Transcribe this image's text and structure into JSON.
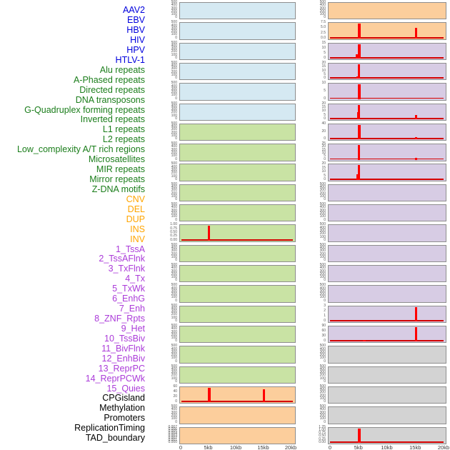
{
  "chart_data": {
    "type": "area",
    "title": "",
    "xlabel": "",
    "ylabel": "",
    "x_axis": {
      "labels": [
        "0",
        "5kb",
        "10kb",
        "15kb",
        "20kb"
      ],
      "range_kb": [
        0,
        20
      ]
    },
    "legend": "none",
    "grid": false,
    "spike_color": "#ff0000",
    "baseline_color": "#d40000",
    "panel_border_color": "#8e8e8e",
    "group_colors": {
      "virus": {
        "label": "#0000dd",
        "fill": "#d5e9f2"
      },
      "repeat": {
        "label": "#1a7d1a",
        "fill": "#c9e3a4"
      },
      "sv": {
        "label": "#ffa500",
        "fill": "#fcce9c"
      },
      "state": {
        "label": "#ab3bd9",
        "fill": "#d7cce4"
      },
      "other": {
        "label": "#000000",
        "fill": "#d3d3d3"
      }
    },
    "columns": {
      "left": {
        "panels": [
          {
            "name": "AAV2",
            "group": "virus",
            "yticks": [
              "0",
              "100",
              "200",
              "300",
              "400",
              "500"
            ],
            "spikes": [],
            "baseline": false
          },
          {
            "name": "EBV",
            "group": "virus",
            "yticks": [
              "0",
              "100",
              "200",
              "300",
              "400",
              "500"
            ],
            "spikes": [],
            "baseline": false
          },
          {
            "name": "HBV",
            "group": "virus",
            "yticks": [
              "0",
              "100",
              "200",
              "300",
              "400",
              "500"
            ],
            "spikes": [],
            "baseline": false
          },
          {
            "name": "HIV",
            "group": "virus",
            "yticks": [
              "0",
              "100",
              "200",
              "300",
              "400",
              "500"
            ],
            "spikes": [],
            "baseline": false
          },
          {
            "name": "HPV",
            "group": "virus",
            "yticks": [
              "0",
              "100",
              "200",
              "300",
              "400",
              "500"
            ],
            "spikes": [],
            "baseline": false
          },
          {
            "name": "HTLV-1",
            "group": "virus",
            "yticks": [
              "0",
              "100",
              "200",
              "300",
              "400",
              "500"
            ],
            "spikes": [],
            "baseline": false
          },
          {
            "name": "Alu repeats",
            "group": "repeat",
            "yticks": [
              "0",
              "100",
              "200",
              "300",
              "400",
              "500"
            ],
            "spikes": [],
            "baseline": false
          },
          {
            "name": "A-Phased repeats",
            "group": "repeat",
            "yticks": [
              "0",
              "100",
              "200",
              "300",
              "400",
              "500"
            ],
            "spikes": [],
            "baseline": false
          },
          {
            "name": "Directed repeats",
            "group": "repeat",
            "yticks": [
              "0",
              "100",
              "200",
              "300",
              "400",
              "500"
            ],
            "spikes": [],
            "baseline": false
          },
          {
            "name": "DNA transposons",
            "group": "repeat",
            "yticks": [
              "0",
              "100",
              "200",
              "300",
              "400",
              "500"
            ],
            "spikes": [],
            "baseline": false
          },
          {
            "name": "G-Quadruplex forming repeats",
            "group": "repeat",
            "yticks": [
              "0",
              "100",
              "200",
              "300",
              "400",
              "500"
            ],
            "spikes": [],
            "baseline": false
          },
          {
            "name": "Inverted repeats",
            "group": "repeat",
            "yticks": [
              "0.00",
              "0.25",
              "0.50",
              "0.75",
              "1.00"
            ],
            "spikes": [
              {
                "kb": 5,
                "h": 1.0,
                "w": 2.5
              }
            ],
            "baseline": true
          },
          {
            "name": "L1 repeats",
            "group": "repeat",
            "yticks": [
              "0",
              "100",
              "200",
              "300",
              "400",
              "500"
            ],
            "spikes": [],
            "baseline": false
          },
          {
            "name": "L2 repeats",
            "group": "repeat",
            "yticks": [
              "0",
              "100",
              "200",
              "300",
              "400",
              "500"
            ],
            "spikes": [],
            "baseline": false
          },
          {
            "name": "Low_complexity A/T rich regions",
            "group": "repeat",
            "yticks": [
              "0",
              "100",
              "200",
              "300",
              "400",
              "500"
            ],
            "spikes": [],
            "baseline": false
          },
          {
            "name": "Microsatellites",
            "group": "repeat",
            "yticks": [
              "0",
              "100",
              "200",
              "300",
              "400",
              "500"
            ],
            "spikes": [],
            "baseline": false
          },
          {
            "name": "MIR repeats",
            "group": "repeat",
            "yticks": [
              "0",
              "100",
              "200",
              "300",
              "400",
              "500"
            ],
            "spikes": [],
            "baseline": false
          },
          {
            "name": "Mirror repeats",
            "group": "repeat",
            "yticks": [
              "0",
              "100",
              "200",
              "300",
              "400",
              "500"
            ],
            "spikes": [],
            "baseline": false
          },
          {
            "name": "Z-DNA motifs",
            "group": "repeat",
            "yticks": [
              "0",
              "100",
              "200",
              "300",
              "400",
              "500"
            ],
            "spikes": [],
            "baseline": false
          },
          {
            "name": "CNV",
            "group": "sv",
            "yticks": [
              "0",
              "20",
              "40",
              "60"
            ],
            "spikes": [
              {
                "kb": 5,
                "h": 1.0,
                "w": 4
              },
              {
                "kb": 15,
                "h": 0.92,
                "w": 3.5
              }
            ],
            "baseline": true
          },
          {
            "name": "DEL",
            "group": "sv",
            "yticks": [
              "0",
              "100",
              "200",
              "300",
              "400",
              "500"
            ],
            "spikes": [],
            "baseline": false
          },
          {
            "name": "DUP",
            "group": "sv",
            "yticks": [
              "0.000",
              "0.001",
              "0.002",
              "0.003",
              "0.004",
              "0.005",
              "0.006",
              "0.007"
            ],
            "spikes": [],
            "baseline": false
          }
        ]
      },
      "right": {
        "panels": [
          {
            "name": "INS",
            "group": "sv",
            "yticks": [
              "0",
              "100",
              "200",
              "300",
              "400",
              "500"
            ],
            "spikes": [],
            "baseline": false
          },
          {
            "name": "INV",
            "group": "sv",
            "yticks": [
              "0.0",
              "2.5",
              "5.0",
              "7.5"
            ],
            "spikes": [
              {
                "kb": 5,
                "h": 1.0,
                "w": 3.5
              },
              {
                "kb": 15,
                "h": 0.72,
                "w": 3
              }
            ],
            "baseline": true
          },
          {
            "name": "1_TssA",
            "group": "state",
            "yticks": [
              "0",
              "5",
              "10",
              "15"
            ],
            "spikes": [
              {
                "kb": 5,
                "h": 1.0,
                "w": 3.5
              },
              {
                "kb": 4.6,
                "h": 0.28,
                "w": 3
              }
            ],
            "baseline": true
          },
          {
            "name": "2_TssAFlnk",
            "group": "state",
            "yticks": [
              "0",
              "5",
              "10",
              "15",
              "20"
            ],
            "spikes": [
              {
                "kb": 5,
                "h": 1.0,
                "w": 3
              },
              {
                "kb": 4.7,
                "h": 0.17,
                "w": 3
              }
            ],
            "baseline": true
          },
          {
            "name": "3_TxFlnk",
            "group": "state",
            "yticks": [
              "0",
              "5",
              "10"
            ],
            "spikes": [
              {
                "kb": 5,
                "h": 1.0,
                "w": 3.5
              }
            ],
            "baseline": true
          },
          {
            "name": "4_Tx",
            "group": "state",
            "yticks": [
              "0",
              "5",
              "10",
              "15",
              "20"
            ],
            "spikes": [
              {
                "kb": 5,
                "h": 1.0,
                "w": 3
              },
              {
                "kb": 4.8,
                "h": 0.5,
                "w": 2
              },
              {
                "kb": 15,
                "h": 0.27,
                "w": 3
              }
            ],
            "baseline": true
          },
          {
            "name": "5_TxWk",
            "group": "state",
            "yticks": [
              "0",
              "20",
              "40"
            ],
            "spikes": [
              {
                "kb": 5,
                "h": 1.0,
                "w": 3.5
              },
              {
                "kb": 15,
                "h": 0.18,
                "w": 3
              }
            ],
            "baseline": true
          },
          {
            "name": "6_EnhG",
            "group": "state",
            "yticks": [
              "0",
              "5",
              "10",
              "15",
              "20",
              "25"
            ],
            "spikes": [
              {
                "kb": 5,
                "h": 1.0,
                "w": 3
              },
              {
                "kb": 15,
                "h": 0.13,
                "w": 2.5
              }
            ],
            "baseline": true
          },
          {
            "name": "7_Enh",
            "group": "state",
            "yticks": [
              "0",
              "5",
              "10",
              "15",
              "20"
            ],
            "spikes": [
              {
                "kb": 5,
                "h": 1.0,
                "w": 3
              },
              {
                "kb": 4.85,
                "h": 0.38,
                "w": 5
              }
            ],
            "baseline": true
          },
          {
            "name": "8_ZNF_Rpts",
            "group": "state",
            "yticks": [
              "0",
              "100",
              "200",
              "300",
              "400",
              "500"
            ],
            "spikes": [],
            "baseline": false
          },
          {
            "name": "9_Het",
            "group": "state",
            "yticks": [
              "0",
              "100",
              "200",
              "300",
              "400",
              "500"
            ],
            "spikes": [],
            "baseline": false
          },
          {
            "name": "10_TssBiv",
            "group": "state",
            "yticks": [
              "0",
              "100",
              "200",
              "300",
              "400",
              "500"
            ],
            "spikes": [],
            "baseline": false
          },
          {
            "name": "11_BivFlnk",
            "group": "state",
            "yticks": [
              "0",
              "100",
              "200",
              "300",
              "400",
              "500"
            ],
            "spikes": [],
            "baseline": false
          },
          {
            "name": "12_EnhBiv",
            "group": "state",
            "yticks": [
              "0",
              "100",
              "200",
              "300",
              "400",
              "500"
            ],
            "spikes": [],
            "baseline": false
          },
          {
            "name": "13_ReprPC",
            "group": "state",
            "yticks": [
              "0",
              "100",
              "200",
              "300",
              "400",
              "500"
            ],
            "spikes": [],
            "baseline": false
          },
          {
            "name": "14_ReprPCWk",
            "group": "state",
            "yticks": [
              "0",
              "1",
              "2",
              "3"
            ],
            "spikes": [
              {
                "kb": 15,
                "h": 1.0,
                "w": 3.5
              }
            ],
            "baseline": true
          },
          {
            "name": "15_Quies",
            "group": "state",
            "yticks": [
              "0",
              "30",
              "60",
              "90"
            ],
            "spikes": [
              {
                "kb": 15,
                "h": 1.0,
                "w": 3.5
              },
              {
                "kb": 5.9,
                "h": 0.1,
                "w": 4
              }
            ],
            "baseline": true
          },
          {
            "name": "CPGisland",
            "group": "other",
            "yticks": [
              "0",
              "100",
              "200",
              "300",
              "400",
              "500"
            ],
            "spikes": [],
            "baseline": false
          },
          {
            "name": "Methylation",
            "group": "other",
            "yticks": [
              "0",
              "100",
              "200",
              "300",
              "400",
              "500"
            ],
            "spikes": [],
            "baseline": false
          },
          {
            "name": "Promoters",
            "group": "other",
            "yticks": [
              "0",
              "100",
              "200",
              "300",
              "400",
              "500"
            ],
            "spikes": [],
            "baseline": false
          },
          {
            "name": "ReplicationTiming",
            "group": "other",
            "yticks": [
              "0",
              "100",
              "200",
              "300",
              "400",
              "500"
            ],
            "spikes": [],
            "baseline": false
          },
          {
            "name": "TAD_boundary",
            "group": "other",
            "yticks": [
              "0.00",
              "0.25",
              "0.50",
              "0.75",
              "1.00",
              "1.25"
            ],
            "spikes": [
              {
                "kb": 5,
                "h": 1.0,
                "w": 4.5
              }
            ],
            "baseline": true
          }
        ]
      }
    }
  }
}
